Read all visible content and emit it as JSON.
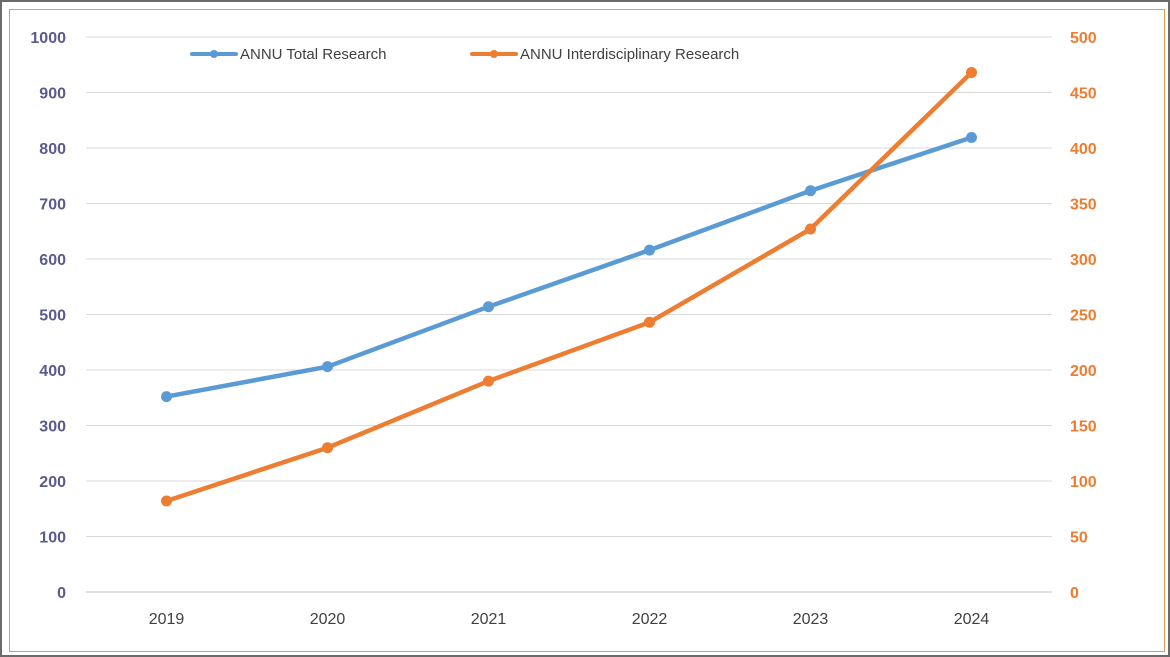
{
  "colors": {
    "total": "#5b9bd5",
    "interdisciplinary": "#ed7d31",
    "left_axis_text": "#5a5a8c",
    "right_axis_text": "#ed7d31",
    "grid": "#d9d9d9"
  },
  "chart_data": {
    "type": "line",
    "x": [
      "2019",
      "2020",
      "2021",
      "2022",
      "2023",
      "2024"
    ],
    "series": [
      {
        "name": "ANNU Total Research",
        "axis": "left",
        "values": [
          352,
          406,
          514,
          616,
          723,
          819
        ]
      },
      {
        "name": "ANNU Interdisciplinary Research",
        "axis": "right",
        "values": [
          82,
          130,
          190,
          243,
          327,
          468
        ]
      }
    ],
    "y_left": {
      "range": [
        0,
        1000
      ],
      "ticks": [
        "0",
        "100",
        "200",
        "300",
        "400",
        "500",
        "600",
        "700",
        "800",
        "900",
        "1000"
      ]
    },
    "y_right": {
      "range": [
        0,
        500
      ],
      "ticks": [
        "0",
        "50",
        "100",
        "150",
        "200",
        "250",
        "300",
        "350",
        "400",
        "450",
        "500"
      ]
    },
    "grid": true,
    "legend_position": "top"
  }
}
